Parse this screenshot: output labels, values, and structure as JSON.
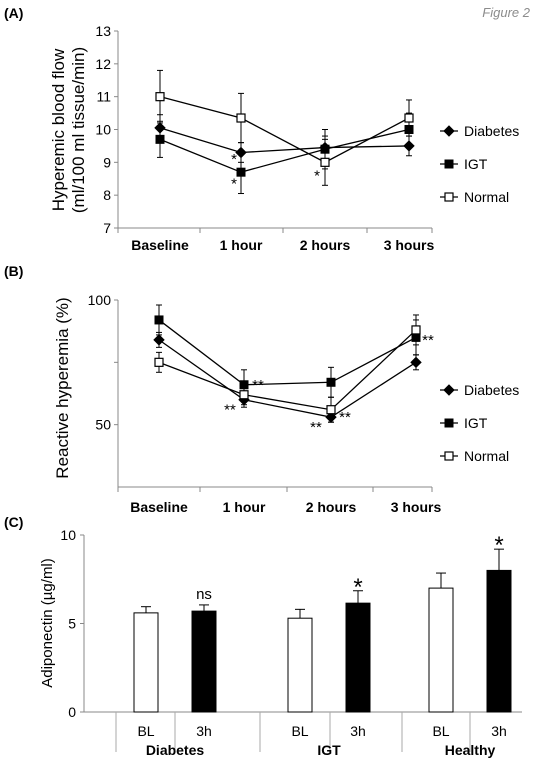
{
  "figure_title": "Figure 2",
  "chart_data": [
    {
      "panel": "(A)",
      "type": "line",
      "ylabel_line1": "Hyperemic blood flow",
      "ylabel_line2": "(ml/100 ml tissue/min)",
      "categories": [
        "Baseline",
        "1 hour",
        "2 hours",
        "3 hours"
      ],
      "ylim": [
        7,
        13
      ],
      "yticks": [
        "7",
        "8",
        "9",
        "10",
        "11",
        "12",
        "13"
      ],
      "legend_position": "right",
      "series": [
        {
          "name": "Diabetes",
          "marker": "diamond-filled",
          "values": [
            10.05,
            9.3,
            9.45,
            9.5
          ],
          "err": [
            0.4,
            0.3,
            0.35,
            0.3
          ]
        },
        {
          "name": "IGT",
          "marker": "square-filled",
          "values": [
            9.7,
            8.7,
            9.4,
            10.0
          ],
          "err": [
            0.55,
            0.65,
            0.6,
            0.5
          ]
        },
        {
          "name": "Normal",
          "marker": "square-open",
          "values": [
            11.0,
            10.35,
            9.0,
            10.35
          ],
          "err": [
            0.8,
            0.75,
            0.7,
            0.55
          ]
        }
      ],
      "annotations": [
        {
          "text": "*",
          "category": "1 hour",
          "y": 9.1
        },
        {
          "text": "*",
          "category": "1 hour",
          "y": 8.35
        },
        {
          "text": "*",
          "category": "2 hours",
          "y": 8.6
        }
      ]
    },
    {
      "panel": "(B)",
      "type": "line",
      "ylabel": "Reactive hyperemia (%)",
      "categories": [
        "Baseline",
        "1 hour",
        "2 hours",
        "3 hours"
      ],
      "ylim": [
        25,
        100
      ],
      "yticks": [
        "50",
        "100"
      ],
      "legend_position": "right",
      "series": [
        {
          "name": "Diabetes",
          "marker": "diamond-filled",
          "values": [
            84,
            60,
            53,
            75
          ],
          "err": [
            3,
            3,
            2,
            3
          ]
        },
        {
          "name": "IGT",
          "marker": "square-filled",
          "values": [
            92,
            66,
            67,
            85
          ],
          "err": [
            6,
            6,
            6,
            7
          ]
        },
        {
          "name": "Normal",
          "marker": "square-open",
          "values": [
            75,
            62,
            56,
            88
          ],
          "err": [
            4,
            4,
            5,
            6
          ]
        }
      ],
      "annotations": [
        {
          "text": "**",
          "category": "1 hour",
          "y": 66
        },
        {
          "text": "**",
          "category": "1 hour",
          "y": 56
        },
        {
          "text": "**",
          "category": "2 hours",
          "y": 49
        },
        {
          "text": "**",
          "category": "2 hours",
          "y": 53
        },
        {
          "text": "**",
          "category": "3 hours",
          "y": 84
        }
      ]
    },
    {
      "panel": "(C)",
      "type": "bar",
      "ylabel": "Adiponectin (µg/ml)",
      "ylim": [
        0,
        10
      ],
      "yticks": [
        "0",
        "5",
        "10"
      ],
      "groups": [
        "Diabetes",
        "IGT",
        "Healthy"
      ],
      "bar_labels": [
        "BL",
        "3h"
      ],
      "series": [
        {
          "label": "BL",
          "fill": "#ffffff",
          "values": [
            5.6,
            5.3,
            7.0
          ],
          "err": [
            0.35,
            0.5,
            0.85
          ]
        },
        {
          "label": "3h",
          "fill": "#000000",
          "values": [
            5.7,
            6.15,
            8.0
          ],
          "err": [
            0.35,
            0.7,
            1.2
          ]
        }
      ],
      "annotations": [
        {
          "text": "ns",
          "group": "Diabetes"
        },
        {
          "text": "*",
          "group": "IGT"
        },
        {
          "text": "*",
          "group": "Healthy"
        }
      ]
    }
  ]
}
